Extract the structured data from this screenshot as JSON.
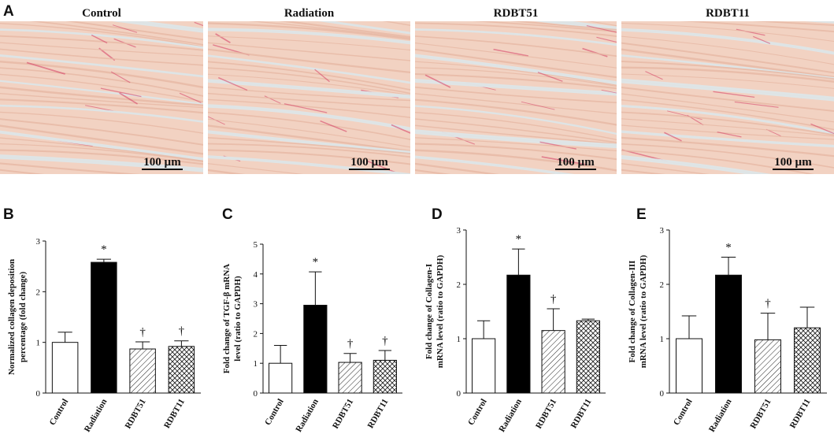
{
  "panel_a": {
    "letter": "A",
    "images": [
      {
        "title": "Control",
        "scale_bar": "100 µm"
      },
      {
        "title": "Radiation",
        "scale_bar": "100 µm"
      },
      {
        "title": "RDBT51",
        "scale_bar": "100 µm"
      },
      {
        "title": "RDBT11",
        "scale_bar": "100 µm"
      }
    ]
  },
  "colors": {
    "tissue": "#f2d2c2",
    "stripe": "#e6b8a4",
    "gap": "#dde6e8",
    "stain": "#d63a62"
  },
  "chart_data": [
    {
      "letter": "B",
      "type": "bar",
      "categories": [
        "Control",
        "Radiation",
        "RDBT51",
        "RDBT11"
      ],
      "values": [
        1.0,
        2.58,
        0.87,
        0.92
      ],
      "errors": [
        0.2,
        0.06,
        0.14,
        0.11
      ],
      "fills": [
        "open",
        "solid",
        "hatch",
        "crosshatch"
      ],
      "markers": [
        "",
        "*",
        "†",
        "†"
      ],
      "ylabel_lines": [
        "Normalized collagen deposition",
        "percentage (fold change)"
      ],
      "ylim": [
        0,
        3
      ],
      "ticks": [
        0,
        1,
        2,
        3
      ]
    },
    {
      "letter": "C",
      "type": "bar",
      "categories": [
        "Control",
        "Radiation",
        "RDBT51",
        "RDBT11"
      ],
      "values": [
        1.0,
        2.95,
        1.03,
        1.1
      ],
      "errors": [
        0.6,
        1.12,
        0.3,
        0.33
      ],
      "fills": [
        "open",
        "solid",
        "hatch",
        "crosshatch"
      ],
      "markers": [
        "",
        "*",
        "†",
        "†"
      ],
      "ylabel_lines": [
        "Fold change of TGF-β mRNA",
        "level (ratio to GAPDH)"
      ],
      "ylim": [
        0,
        5
      ],
      "ticks": [
        0,
        1,
        2,
        3,
        4,
        5
      ]
    },
    {
      "letter": "D",
      "type": "bar",
      "categories": [
        "Control",
        "Radiation",
        "RDBT51",
        "RDBT11"
      ],
      "values": [
        1.0,
        2.17,
        1.15,
        1.33
      ],
      "errors": [
        0.33,
        0.48,
        0.4,
        0.03
      ],
      "fills": [
        "open",
        "solid",
        "hatch",
        "crosshatch"
      ],
      "markers": [
        "",
        "*",
        "†",
        ""
      ],
      "ylabel_lines": [
        "Fold change of Collagen-I",
        "mRNA level (ratio to GAPDH)"
      ],
      "ylim": [
        0,
        3
      ],
      "ticks": [
        0,
        1,
        2,
        3
      ]
    },
    {
      "letter": "E",
      "type": "bar",
      "categories": [
        "Control",
        "Radiation",
        "RDBT51",
        "RDBT11"
      ],
      "values": [
        1.0,
        2.17,
        0.98,
        1.2
      ],
      "errors": [
        0.42,
        0.33,
        0.49,
        0.38
      ],
      "fills": [
        "open",
        "solid",
        "hatch",
        "crosshatch"
      ],
      "markers": [
        "",
        "*",
        "†",
        ""
      ],
      "ylabel_lines": [
        "Fold change of Collagen-III",
        "mRNA level (ratio to GAPDH)"
      ],
      "ylim": [
        0,
        3
      ],
      "ticks": [
        0,
        1,
        2,
        3
      ]
    }
  ]
}
